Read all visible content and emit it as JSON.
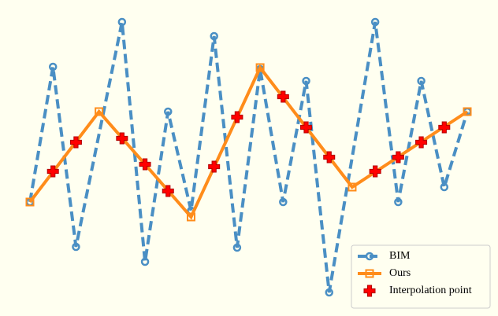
{
  "chart_data": {
    "type": "line",
    "series": [
      {
        "name": "BIM",
        "color": "#4a8fc4",
        "style": "dashed",
        "marker": "circle",
        "x": [
          0,
          1,
          2,
          4,
          5,
          6,
          7,
          8,
          9,
          10,
          11,
          12,
          13,
          15,
          16,
          17,
          18,
          19
        ],
        "values": [
          123,
          295,
          66,
          352,
          47,
          238,
          112,
          334,
          65,
          292,
          123,
          277,
          8,
          352,
          123,
          277,
          142,
          238
        ]
      },
      {
        "name": "Ours",
        "color": "#ff8c1a",
        "style": "solid",
        "marker": "square",
        "x": [
          0,
          3,
          7,
          10,
          14,
          19
        ],
        "values": [
          123,
          238,
          104,
          294,
          142,
          238
        ]
      },
      {
        "name": "Interpolation point",
        "color": "#ff0000",
        "style": "none",
        "marker": "plus",
        "x": [
          1,
          2,
          4,
          5,
          6,
          8,
          9,
          11,
          12,
          13,
          15,
          16,
          17,
          18
        ],
        "values": [
          162,
          199,
          204,
          171,
          137,
          168,
          231,
          257,
          218,
          180,
          162,
          180,
          199,
          218
        ]
      }
    ],
    "legend": "lower right"
  }
}
